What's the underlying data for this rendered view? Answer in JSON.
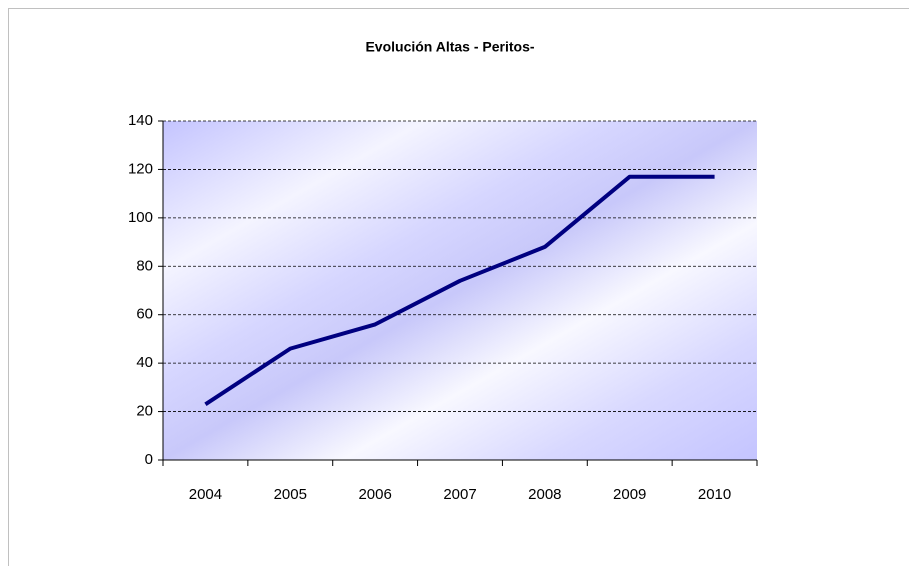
{
  "chart_data": {
    "type": "line",
    "title": "Evolución Altas - Peritos-",
    "categories": [
      "2004",
      "2005",
      "2006",
      "2007",
      "2008",
      "2009",
      "2010"
    ],
    "values": [
      23,
      46,
      56,
      74,
      88,
      117,
      117
    ],
    "color": "#000080",
    "ylim": [
      0,
      140
    ],
    "yticks": [
      0,
      20,
      40,
      60,
      80,
      100,
      120,
      140
    ],
    "grid": true
  }
}
